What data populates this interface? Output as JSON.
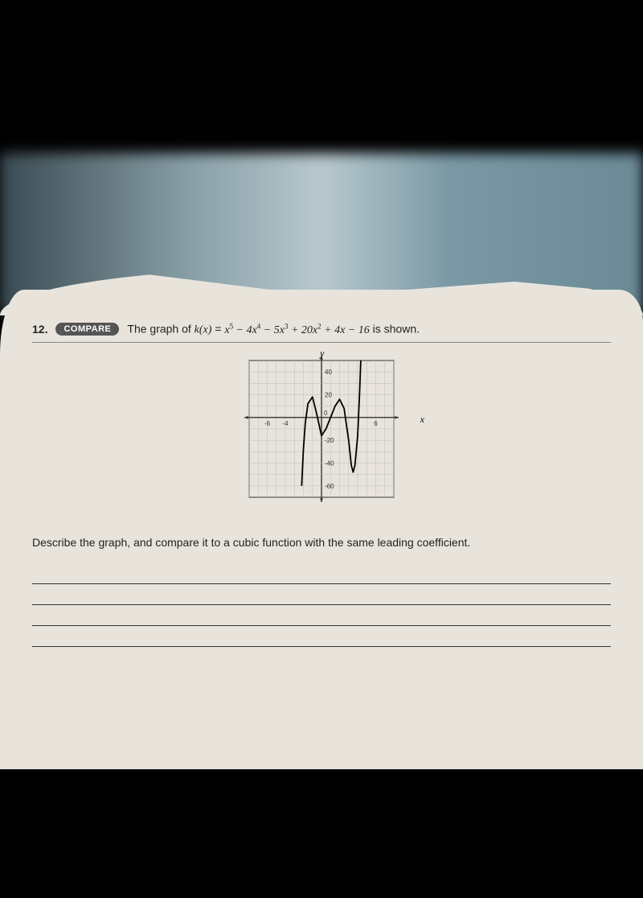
{
  "problem": {
    "number": "12.",
    "badge": "COMPARE",
    "lead_text": "The graph of ",
    "function_name": "k(x)",
    "equals": " = ",
    "polynomial_html": "x⁵ − 4x⁴ − 5x³ + 20x² + 4x − 16",
    "trail_text": " is shown.",
    "question": "Describe the graph, and compare it to a cubic function with the same leading coefficient."
  },
  "graph": {
    "x_axis_label": "x",
    "y_axis_label": "y",
    "xlim": [
      -8,
      8
    ],
    "ylim": [
      -70,
      50
    ],
    "x_ticks": [
      -6,
      -4,
      6
    ],
    "y_ticks_pos": [
      20,
      40
    ],
    "y_ticks_neg": [
      -20,
      -40,
      -60
    ],
    "grid_color": "#bbb",
    "axis_color": "#333",
    "curve_color": "#000",
    "curve_width": 1.8,
    "background": "#e8e4dc",
    "curve_points": [
      [
        -2.2,
        -60
      ],
      [
        -2.0,
        -28
      ],
      [
        -1.8,
        -5
      ],
      [
        -1.5,
        12
      ],
      [
        -1.0,
        18
      ],
      [
        -0.5,
        2
      ],
      [
        0,
        -16
      ],
      [
        0.5,
        -10
      ],
      [
        1.0,
        0
      ],
      [
        1.5,
        10
      ],
      [
        2.0,
        16
      ],
      [
        2.5,
        8
      ],
      [
        3.0,
        -20
      ],
      [
        3.3,
        -42
      ],
      [
        3.5,
        -48
      ],
      [
        3.7,
        -42
      ],
      [
        4.0,
        -16
      ],
      [
        4.2,
        20
      ],
      [
        4.35,
        50
      ]
    ]
  },
  "answer_lines_count": 4,
  "colors": {
    "page_bg": "#e8e4dc",
    "text": "#222",
    "badge_bg": "#555",
    "line": "#333"
  }
}
